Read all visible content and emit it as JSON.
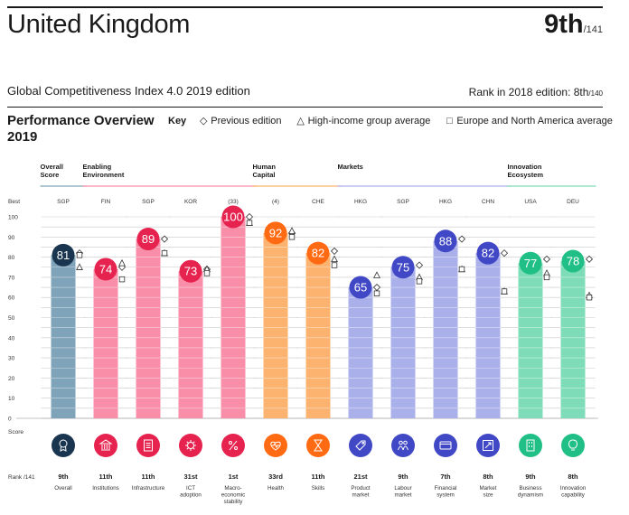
{
  "header": {
    "country": "United Kingdom",
    "rank": "9th",
    "rank_total": "/141",
    "edition": "Global Competitiveness Index 4.0 2019 edition",
    "rank_2018_label": "Rank in 2018 edition: 8th",
    "rank_2018_total": "/140"
  },
  "overview": {
    "title": "Performance Overview 2019",
    "key_label": "Key",
    "key_previous": "Previous edition",
    "key_high_income": "High-income group average",
    "key_europe": "Europe and North America average"
  },
  "chart_data": {
    "type": "bar",
    "ylim": [
      0,
      100
    ],
    "y_top_label": "Best",
    "y_ticks": [
      0,
      10,
      20,
      30,
      40,
      50,
      60,
      70,
      80,
      90,
      100
    ],
    "x_axis_label": "Score",
    "rank_prefix": "Rank /141",
    "groups": [
      {
        "name": "Overall Score",
        "color": "#7fa3b9",
        "circle": "#1a3550",
        "pillars": [
          0
        ]
      },
      {
        "name": "Enabling Environment",
        "color": "#f88ea8",
        "circle": "#e6234f",
        "pillars": [
          1,
          2,
          3,
          4
        ]
      },
      {
        "name": "Human Capital",
        "color": "#fbb36f",
        "circle": "#ff6a13",
        "pillars": [
          5,
          6
        ]
      },
      {
        "name": "Markets",
        "color": "#aab0ea",
        "circle": "#4148c5",
        "pillars": [
          7,
          8,
          9,
          10
        ]
      },
      {
        "name": "Innovation Ecosystem",
        "color": "#7fdcb8",
        "circle": "#20bf85",
        "pillars": [
          11,
          12
        ]
      }
    ],
    "pillars": [
      {
        "name": "Overall",
        "best": "SGP",
        "value": 81,
        "previous": 82,
        "high_income": 75,
        "europe": 81,
        "rank": "9th",
        "icon": "medal"
      },
      {
        "name": "Institutions",
        "best": "FIN",
        "value": 74,
        "previous": 75,
        "high_income": 77,
        "europe": 69,
        "rank": "11th",
        "icon": "building"
      },
      {
        "name": "Infrastructure",
        "best": "SGP",
        "value": 89,
        "previous": 89,
        "high_income": 82,
        "europe": 82,
        "rank": "11th",
        "icon": "document"
      },
      {
        "name": "ICT adoption",
        "best": "KOR",
        "value": 73,
        "previous": 74,
        "high_income": 74,
        "europe": 72,
        "rank": "31st",
        "icon": "cog"
      },
      {
        "name": "Macro-economic stability",
        "best": "(33)",
        "value": 100,
        "previous": 100,
        "high_income": 97,
        "europe": 97,
        "rank": "1st",
        "icon": "percent"
      },
      {
        "name": "Health",
        "best": "(4)",
        "value": 92,
        "previous": 92,
        "high_income": 93,
        "europe": 90,
        "rank": "33rd",
        "icon": "heart"
      },
      {
        "name": "Skills",
        "best": "CHE",
        "value": 82,
        "previous": 83,
        "high_income": 79,
        "europe": 76,
        "rank": "11th",
        "icon": "hourglass"
      },
      {
        "name": "Product market",
        "best": "HKG",
        "value": 65,
        "previous": 65,
        "high_income": 71,
        "europe": 62,
        "rank": "21st",
        "icon": "tag"
      },
      {
        "name": "Labour market",
        "best": "SGP",
        "value": 75,
        "previous": 76,
        "high_income": 70,
        "europe": 68,
        "rank": "9th",
        "icon": "people"
      },
      {
        "name": "Financial system",
        "best": "HKG",
        "value": 88,
        "previous": 89,
        "high_income": 74,
        "europe": 74,
        "rank": "7th",
        "icon": "card"
      },
      {
        "name": "Market size",
        "best": "CHN",
        "value": 82,
        "previous": 82,
        "high_income": 63,
        "europe": 63,
        "rank": "8th",
        "icon": "expand"
      },
      {
        "name": "Business dynamism",
        "best": "USA",
        "value": 77,
        "previous": 79,
        "high_income": 72,
        "europe": 70,
        "rank": "9th",
        "icon": "briefcase"
      },
      {
        "name": "Innovation capability",
        "best": "DEU",
        "value": 78,
        "previous": 79,
        "high_income": 61,
        "europe": 60,
        "rank": "8th",
        "icon": "bulb"
      }
    ]
  }
}
